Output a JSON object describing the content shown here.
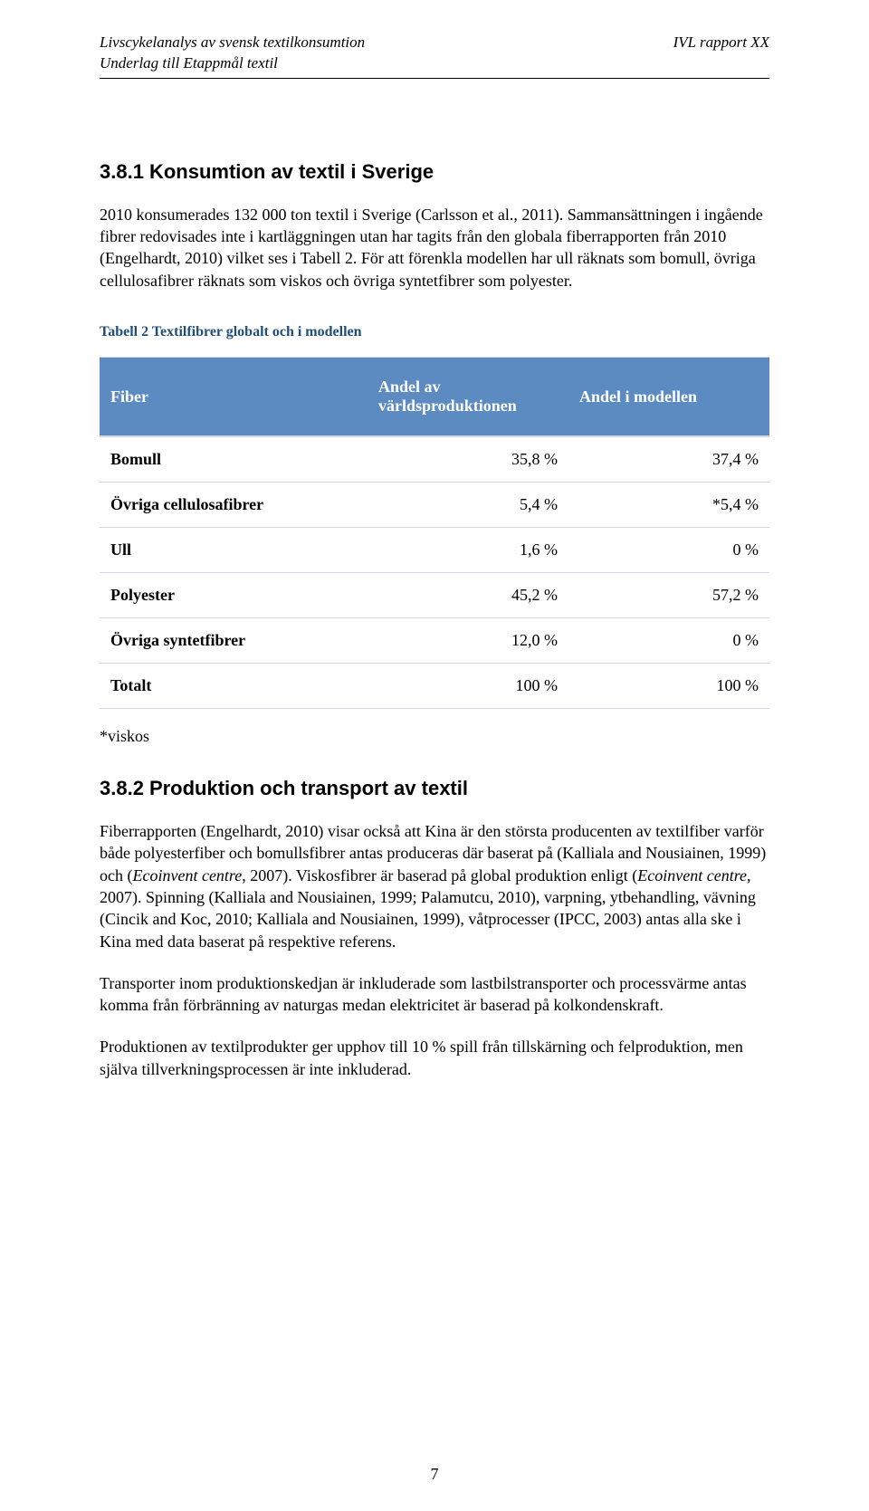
{
  "header": {
    "left_line1": "Livscykelanalys av svensk textilkonsumtion",
    "left_line2": "Underlag till Etappmål textil",
    "right": "IVL rapport XX"
  },
  "section1": {
    "number": "3.8.1",
    "title": "Konsumtion av textil i Sverige",
    "para": "2010 konsumerades 132 000 ton textil i Sverige (Carlsson et al., 2011). Sammansättningen i ingående fibrer redovisades inte i kartläggningen utan har tagits från den globala fiberrapporten från 2010 (Engelhardt, 2010) vilket ses i Tabell 2. För att förenkla modellen har ull räknats som bomull, övriga cellulosafibrer räknats som viskos och övriga syntetfibrer som polyester."
  },
  "table": {
    "caption": "Tabell 2 Textilfibrer globalt och i modellen",
    "header_bg": "#5b8bc1",
    "header_color": "#ffffff",
    "border_color": "#d0d7e5",
    "caption_color": "#1f4e79",
    "columns": [
      "Fiber",
      "Andel av världsproduktionen",
      "Andel i modellen"
    ],
    "rows": [
      {
        "label": "Bomull",
        "c1": "35,8 %",
        "c2": "37,4 %"
      },
      {
        "label": "Övriga cellulosafibrer",
        "c1": "5,4 %",
        "c2": "*5,4 %"
      },
      {
        "label": "Ull",
        "c1": "1,6 %",
        "c2": "0 %"
      },
      {
        "label": "Polyester",
        "c1": "45,2 %",
        "c2": "57,2 %"
      },
      {
        "label": "Övriga syntetfibrer",
        "c1": "12,0 %",
        "c2": "0 %"
      },
      {
        "label": "Totalt",
        "c1": "100 %",
        "c2": "100 %"
      }
    ],
    "footnote": "*viskos"
  },
  "section2": {
    "number": "3.8.2",
    "title": "Produktion och transport av textil",
    "para1": "Fiberrapporten (Engelhardt, 2010) visar också att Kina är den största producenten av textilfiber varför både polyesterfiber och bomullsfibrer antas produceras där baserat på (Kalliala and Nousiainen, 1999) och (Ecoinvent centre, 2007). Viskosfibrer är baserad på global produktion enligt (Ecoinvent centre, 2007). Spinning (Kalliala and Nousiainen, 1999; Palamutcu, 2010), varpning, ytbehandling, vävning (Cincik and Koc, 2010; Kalliala and Nousiainen, 1999), våtprocesser (IPCC, 2003) antas alla ske i Kina med data baserat på respektive referens.",
    "para2": "Transporter inom produktionskedjan är inkluderade som lastbilstransporter och processvärme antas komma från förbränning av naturgas medan elektricitet är baserad på kolkondenskraft.",
    "para3": "Produktionen av textilprodukter ger upphov till 10 % spill från tillskärning och felproduktion, men själva tillverkningsprocessen är inte inkluderad."
  },
  "page_number": "7"
}
